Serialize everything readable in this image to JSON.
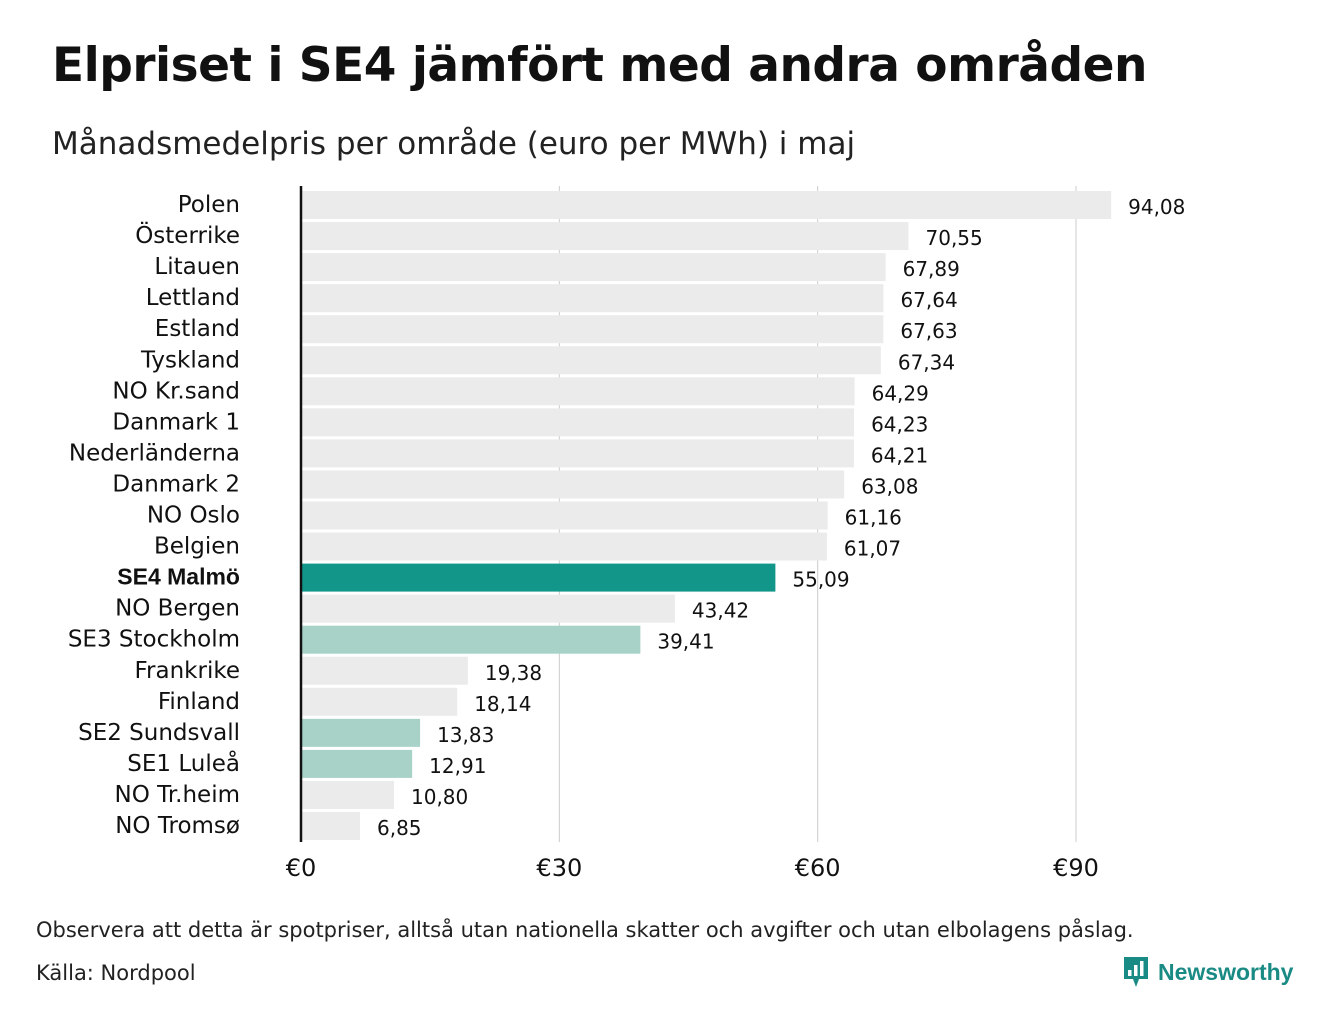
{
  "title": "Elpriset i SE4 jämfört med andra områden",
  "subtitle": "Månadsmedelpris per område (euro per MWh) i maj",
  "footer": {
    "note": "Observera att detta är spotpriser, alltså utan nationella skatter och avgifter och utan elbolagens påslag.",
    "source": "Källa: Nordpool",
    "brand": "Newsworthy",
    "brand_icon": "bar-chart-bubble-icon"
  },
  "colors": {
    "default_bar": "#ebebeb",
    "highlight_bar": "#13968a",
    "secondary_bar": "#a8d1c8",
    "grid": "#cccccc",
    "axis": "#111111",
    "brand": "#1a8a84"
  },
  "chart_data": {
    "type": "bar",
    "orientation": "horizontal",
    "xlim": [
      0,
      100
    ],
    "ticks": [
      0,
      30,
      60,
      90
    ],
    "tick_labels": [
      "€0",
      "€30",
      "€60",
      "€90"
    ],
    "grid": true,
    "categories": [
      "Polen",
      "Österrike",
      "Litauen",
      "Lettland",
      "Estland",
      "Tyskland",
      "NO Kr.sand",
      "Danmark 1",
      "Nederländerna",
      "Danmark 2",
      "NO Oslo",
      "Belgien",
      "SE4 Malmö",
      "NO Bergen",
      "SE3 Stockholm",
      "Frankrike",
      "Finland",
      "SE2 Sundsvall",
      "SE1 Luleå",
      "NO Tr.heim",
      "NO Tromsø"
    ],
    "values": [
      94.08,
      70.55,
      67.89,
      67.64,
      67.63,
      67.34,
      64.29,
      64.23,
      64.21,
      63.08,
      61.16,
      61.07,
      55.09,
      43.42,
      39.41,
      19.38,
      18.14,
      13.83,
      12.91,
      10.8,
      6.85
    ],
    "value_labels": [
      "94,08",
      "70,55",
      "67,89",
      "67,64",
      "67,63",
      "67,34",
      "64,29",
      "64,23",
      "64,21",
      "63,08",
      "61,16",
      "61,07",
      "55,09",
      "43,42",
      "39,41",
      "19,38",
      "18,14",
      "13,83",
      "12,91",
      "10,80",
      "6,85"
    ],
    "highlight": [
      "SE4 Malmö"
    ],
    "secondary": [
      "SE3 Stockholm",
      "SE2 Sundsvall",
      "SE1 Luleå"
    ]
  }
}
